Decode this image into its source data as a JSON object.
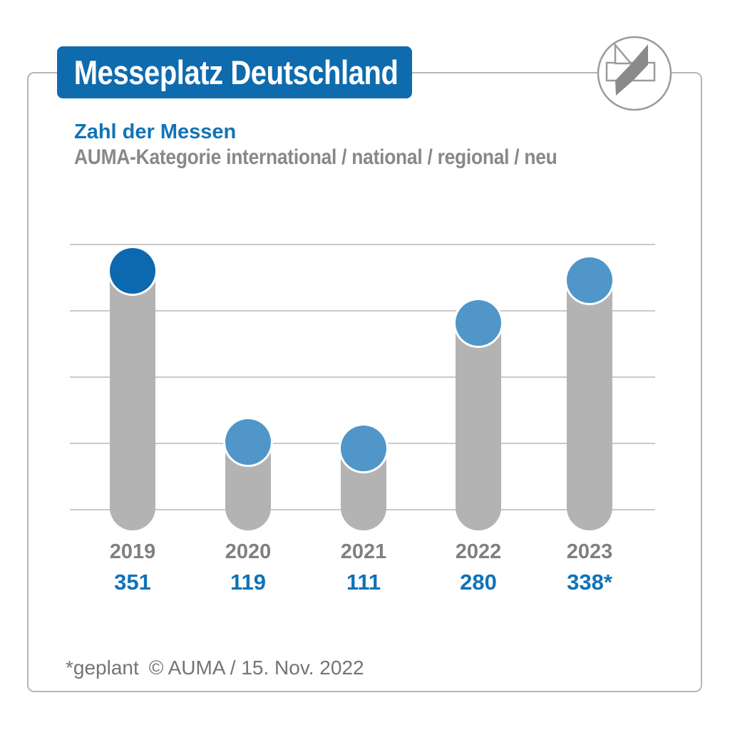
{
  "header": {
    "title": "Messeplatz Deutschland",
    "title_bg": "#0e6bae",
    "title_color": "#ffffff"
  },
  "logo": {
    "icon": "auma-messe-logo",
    "stroke_color": "#9b9b9b",
    "fill_color": "#8a8a8a"
  },
  "subtitle": {
    "line1": "Zahl der Messen",
    "line1_color": "#1173b5",
    "line2": "AUMA-Kategorie international / national / regional / neu",
    "line2_color": "#87888a"
  },
  "chart_data": {
    "type": "bar",
    "title": "Zahl der Messen",
    "subtitle": "AUMA-Kategorie international / national / regional / neu",
    "categories": [
      "2019",
      "2020",
      "2021",
      "2022",
      "2023"
    ],
    "values": [
      351,
      119,
      111,
      280,
      338
    ],
    "value_labels": [
      "351",
      "119",
      "111",
      "280",
      "338*"
    ],
    "ylim": [
      0,
      400
    ],
    "grid": true,
    "gridline_count": 5,
    "legend": "none",
    "bar_color": "#b3b3b3",
    "dot_colors": [
      "#0c69af",
      "#5096c8",
      "#5096c8",
      "#5096c8",
      "#5096c8"
    ],
    "year_label_color": "#7f8080",
    "value_label_color": "#0f72b7",
    "annotation": "* = geplant (planned)"
  },
  "footer": {
    "footnote": "*geplant",
    "source": "© AUMA / 15. Nov. 2022"
  }
}
